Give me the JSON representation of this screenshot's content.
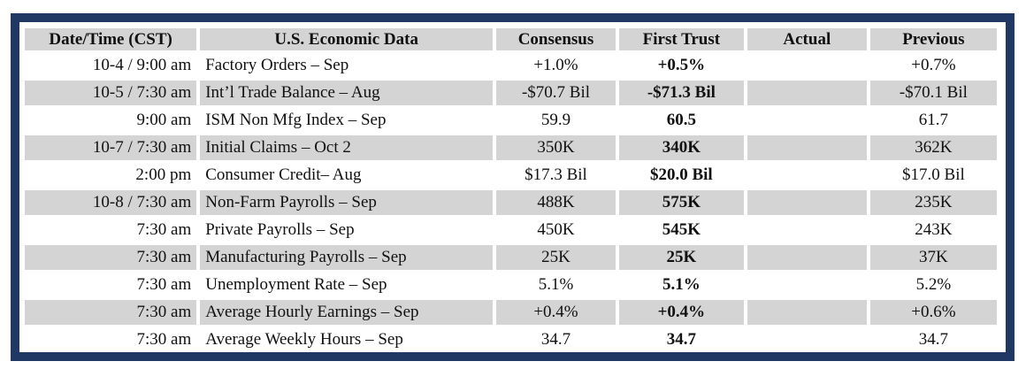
{
  "headers": [
    "Date/Time (CST)",
    "U.S. Economic Data",
    "Consensus",
    "First Trust",
    "Actual",
    "Previous"
  ],
  "rows": [
    {
      "time": "10-4 / 9:00 am",
      "event": "Factory Orders – Sep",
      "consensus": "+1.0%",
      "first_trust": "+0.5%",
      "actual": "",
      "previous": "+0.7%"
    },
    {
      "time": "10-5 / 7:30 am",
      "event": "Int’l Trade Balance – Aug",
      "consensus": "-$70.7 Bil",
      "first_trust": "-$71.3 Bil",
      "actual": "",
      "previous": "-$70.1 Bil"
    },
    {
      "time": "9:00 am",
      "event": "ISM Non Mfg Index – Sep",
      "consensus": "59.9",
      "first_trust": "60.5",
      "actual": "",
      "previous": "61.7"
    },
    {
      "time": "10-7 / 7:30 am",
      "event": "Initial Claims – Oct 2",
      "consensus": "350K",
      "first_trust": "340K",
      "actual": "",
      "previous": "362K"
    },
    {
      "time": "2:00 pm",
      "event": "Consumer Credit– Aug",
      "consensus": "$17.3 Bil",
      "first_trust": "$20.0 Bil",
      "actual": "",
      "previous": "$17.0 Bil"
    },
    {
      "time": "10-8 / 7:30 am",
      "event": "Non-Farm Payrolls – Sep",
      "consensus": "488K",
      "first_trust": "575K",
      "actual": "",
      "previous": "235K"
    },
    {
      "time": "7:30 am",
      "event": "Private Payrolls – Sep",
      "consensus": "450K",
      "first_trust": "545K",
      "actual": "",
      "previous": "243K"
    },
    {
      "time": "7:30 am",
      "event": "Manufacturing Payrolls – Sep",
      "consensus": "25K",
      "first_trust": "25K",
      "actual": "",
      "previous": "37K"
    },
    {
      "time": "7:30 am",
      "event": "Unemployment Rate – Sep",
      "consensus": "5.1%",
      "first_trust": "5.1%",
      "actual": "",
      "previous": "5.2%"
    },
    {
      "time": "7:30 am",
      "event": "Average Hourly Earnings – Sep",
      "consensus": "+0.4%",
      "first_trust": "+0.4%",
      "actual": "",
      "previous": "+0.6%"
    },
    {
      "time": "7:30 am",
      "event": "Average Weekly Hours – Sep",
      "consensus": "34.7",
      "first_trust": "34.7",
      "actual": "",
      "previous": "34.7"
    }
  ],
  "colors": {
    "frame": "#1f3864",
    "shade": "#d4d4d4"
  }
}
